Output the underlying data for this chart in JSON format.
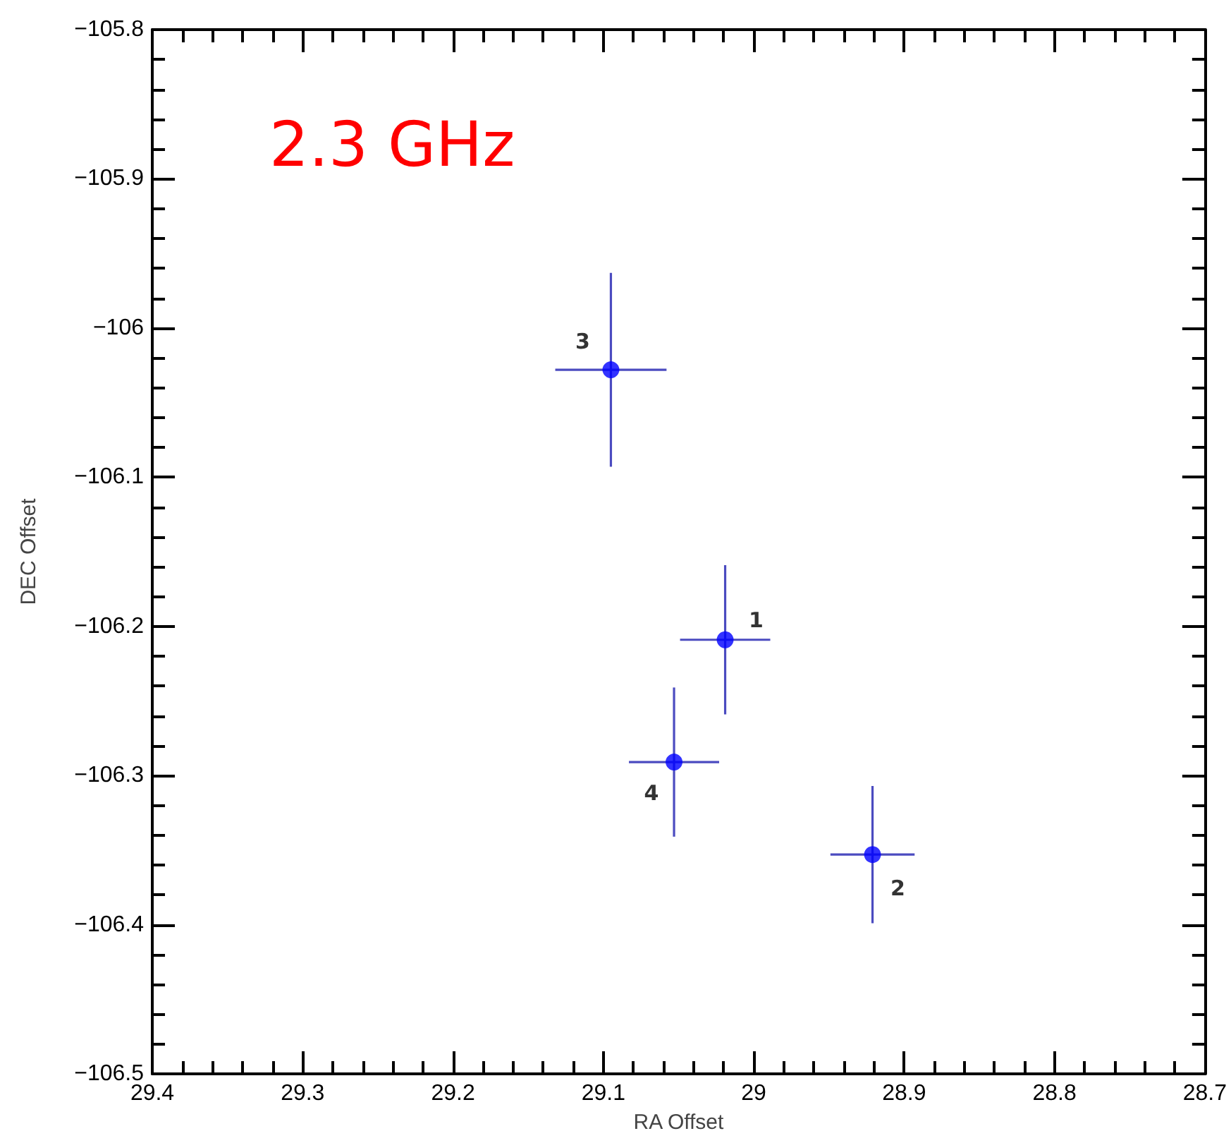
{
  "chart_data": {
    "type": "scatter",
    "title": "2.3 GHz",
    "xlabel": "RA Offset",
    "ylabel": "DEC Offset",
    "x": [
      29.019,
      28.921,
      29.095,
      29.053
    ],
    "values": [
      -106.209,
      -106.353,
      -106.028,
      -106.291
    ],
    "errors": [
      0.05,
      0.046,
      0.065,
      0.05
    ],
    "xerrors": [
      0.03,
      0.028,
      0.037,
      0.03
    ],
    "color": "#0000ff",
    "marker": "circle",
    "xlim": [
      29.4,
      28.7
    ],
    "xticks": [
      29.4,
      29.3,
      29.2,
      29.1,
      29,
      28.9,
      28.8,
      28.7
    ],
    "ylim": [
      -106.5,
      -105.8
    ],
    "yticks": [
      -106.5,
      -106.4,
      -106.3,
      -106.2,
      -106.1,
      -106,
      -105.9,
      -105.8
    ],
    "annotations": [
      {
        "text": "1",
        "x": 29.019,
        "y": -106.209
      },
      {
        "text": "2",
        "x": 28.921,
        "y": -106.353
      },
      {
        "text": "3",
        "x": 29.095,
        "y": -106.028
      },
      {
        "text": "4",
        "x": 29.053,
        "y": -106.291
      }
    ]
  }
}
